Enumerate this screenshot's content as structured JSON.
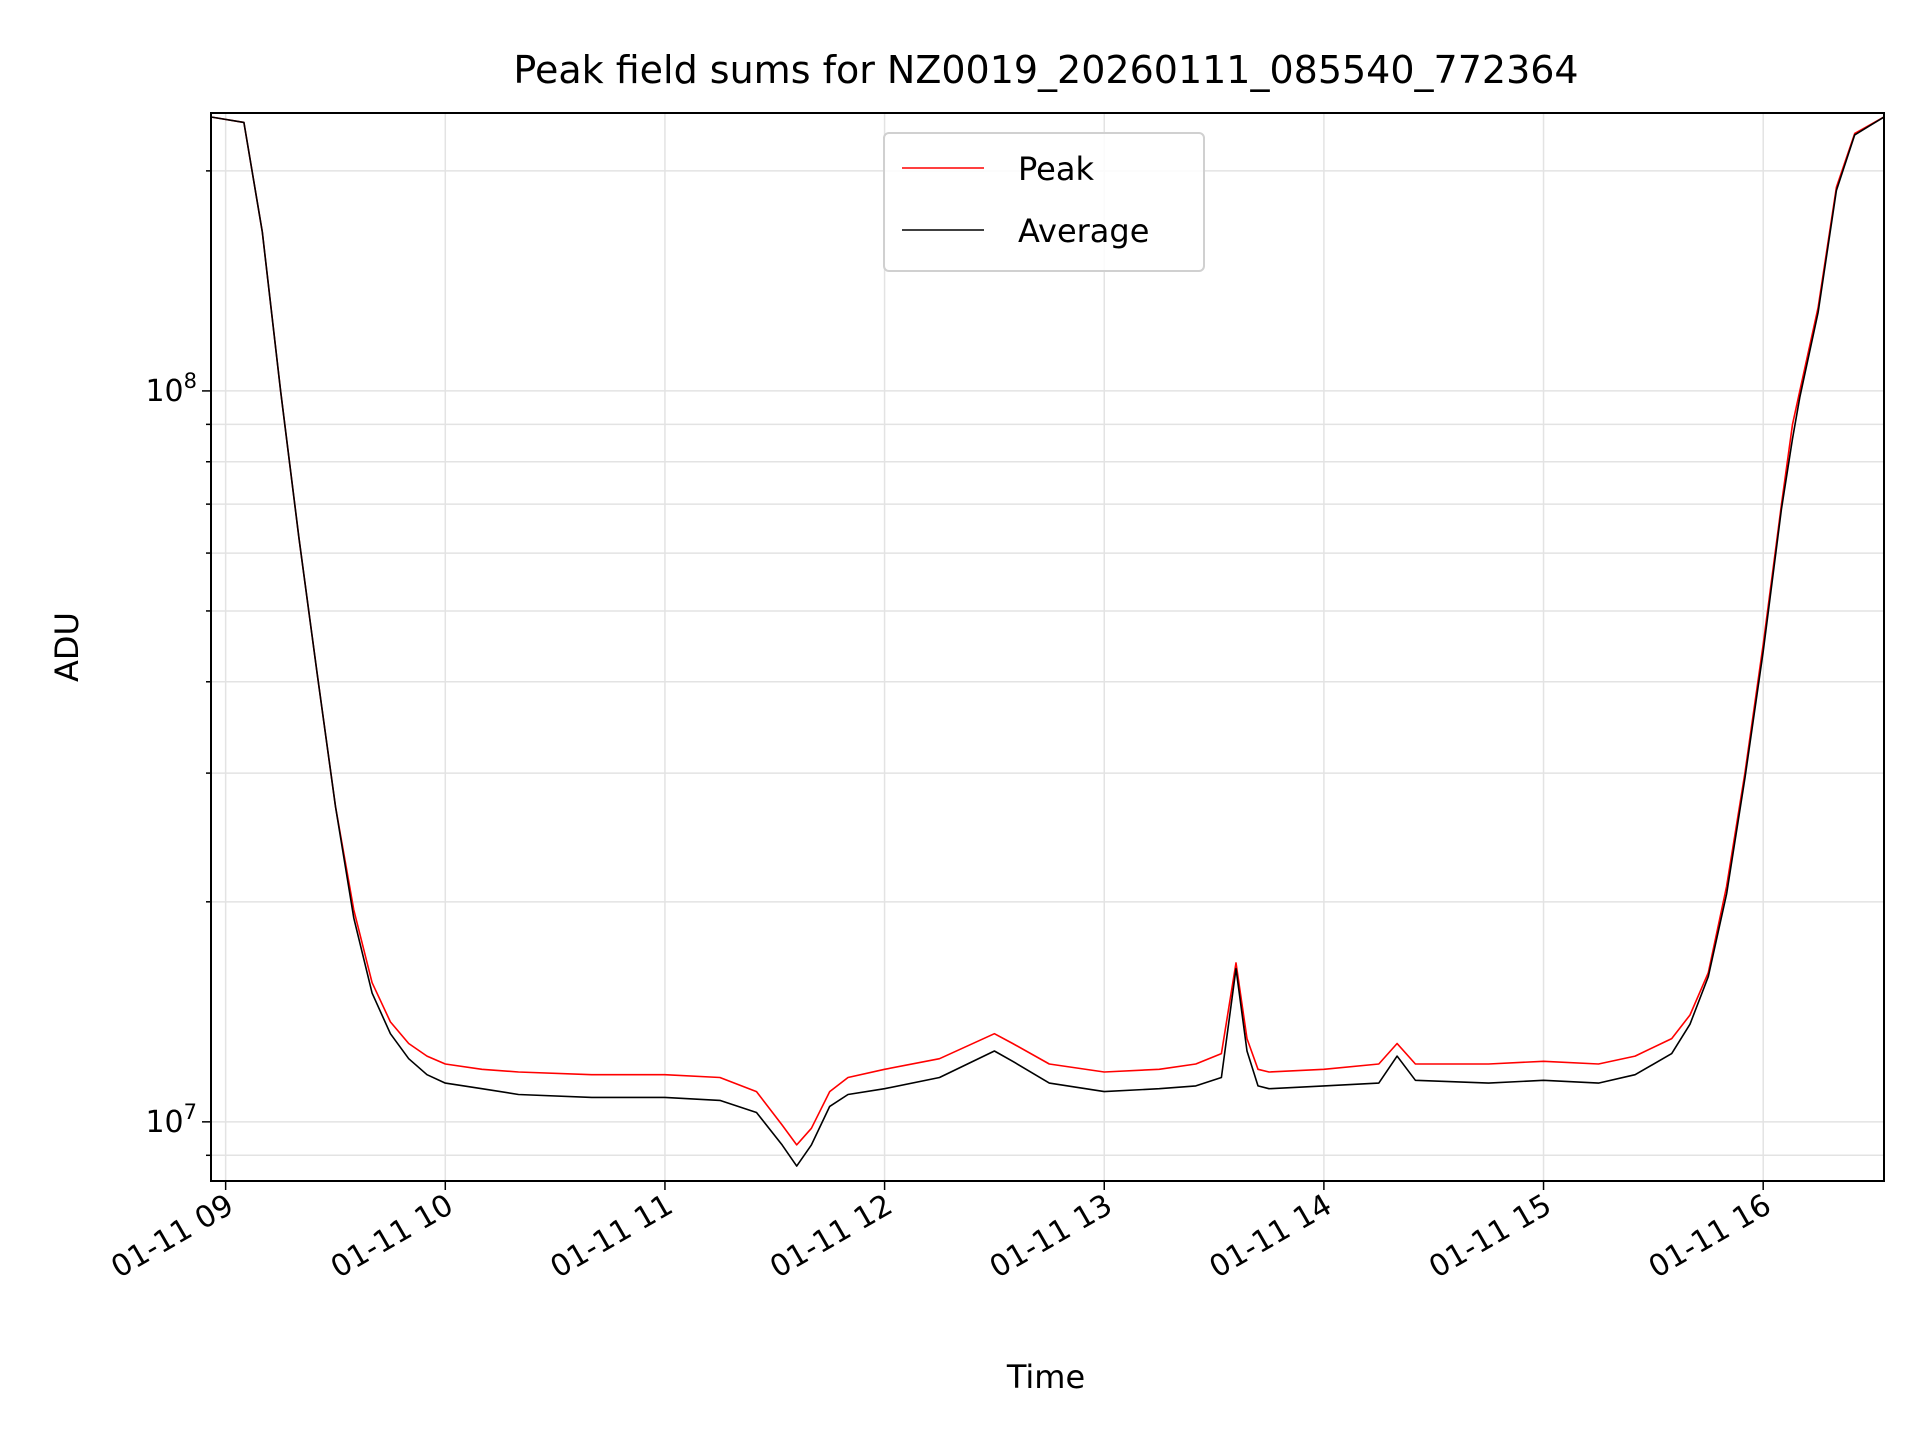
{
  "chart_data": {
    "type": "line",
    "title": "Peak field sums for NZ0019_20260111_085540_772364",
    "xlabel": "Time",
    "ylabel": "ADU",
    "x_scale": "time",
    "y_scale": "log",
    "xlim": [
      "2026-01-11 08:56",
      "2026-01-11 16:33"
    ],
    "ylim": [
      8300000,
      240000000
    ],
    "x_ticks": [
      "2026-01-11 09:00",
      "2026-01-11 10:00",
      "2026-01-11 11:00",
      "2026-01-11 12:00",
      "2026-01-11 13:00",
      "2026-01-11 14:00",
      "2026-01-11 15:00",
      "2026-01-11 16:00"
    ],
    "x_tick_labels": [
      "01-11 09",
      "01-11 10",
      "01-11 11",
      "01-11 12",
      "01-11 13",
      "01-11 14",
      "01-11 15",
      "01-11 16"
    ],
    "y_major_ticks": [
      10000000,
      100000000
    ],
    "y_tick_labels": [
      {
        "base": "10",
        "exp": "7"
      },
      {
        "base": "10",
        "exp": "8"
      }
    ],
    "grid": true,
    "legend_position": "upper center",
    "series": [
      {
        "name": "Peak",
        "color": "#ff0000",
        "x": [
          "2026-01-11 08:56",
          "2026-01-11 09:05",
          "2026-01-11 09:10",
          "2026-01-11 09:15",
          "2026-01-11 09:20",
          "2026-01-11 09:25",
          "2026-01-11 09:30",
          "2026-01-11 09:35",
          "2026-01-11 09:40",
          "2026-01-11 09:45",
          "2026-01-11 09:50",
          "2026-01-11 09:55",
          "2026-01-11 10:00",
          "2026-01-11 10:10",
          "2026-01-11 10:20",
          "2026-01-11 10:40",
          "2026-01-11 11:00",
          "2026-01-11 11:15",
          "2026-01-11 11:25",
          "2026-01-11 11:32",
          "2026-01-11 11:36",
          "2026-01-11 11:40",
          "2026-01-11 11:45",
          "2026-01-11 11:50",
          "2026-01-11 12:00",
          "2026-01-11 12:15",
          "2026-01-11 12:30",
          "2026-01-11 12:35",
          "2026-01-11 12:45",
          "2026-01-11 13:00",
          "2026-01-11 13:15",
          "2026-01-11 13:25",
          "2026-01-11 13:32",
          "2026-01-11 13:36",
          "2026-01-11 13:39",
          "2026-01-11 13:42",
          "2026-01-11 13:45",
          "2026-01-11 14:00",
          "2026-01-11 14:15",
          "2026-01-11 14:20",
          "2026-01-11 14:25",
          "2026-01-11 14:45",
          "2026-01-11 15:00",
          "2026-01-11 15:15",
          "2026-01-11 15:25",
          "2026-01-11 15:35",
          "2026-01-11 15:40",
          "2026-01-11 15:45",
          "2026-01-11 15:50",
          "2026-01-11 15:55",
          "2026-01-11 16:00",
          "2026-01-11 16:05",
          "2026-01-11 16:08",
          "2026-01-11 16:10",
          "2026-01-11 16:15",
          "2026-01-11 16:20",
          "2026-01-11 16:25",
          "2026-01-11 16:33"
        ],
        "values": [
          237000000,
          233000000,
          165000000,
          100000000,
          63000000,
          41000000,
          27000000,
          19500000,
          15500000,
          13700000,
          12800000,
          12300000,
          12000000,
          11800000,
          11700000,
          11600000,
          11600000,
          11500000,
          11000000,
          9900000,
          9300000,
          9800000,
          11000000,
          11500000,
          11800000,
          12200000,
          13200000,
          12800000,
          12000000,
          11700000,
          11800000,
          12000000,
          12400000,
          16500000,
          13000000,
          11800000,
          11700000,
          11800000,
          12000000,
          12800000,
          12000000,
          12000000,
          12100000,
          12000000,
          12300000,
          13000000,
          14000000,
          16000000,
          21000000,
          30000000,
          45000000,
          70000000,
          90000000,
          100000000,
          130000000,
          190000000,
          225000000,
          237000000
        ]
      },
      {
        "name": "Average",
        "color": "#000000",
        "x": [
          "2026-01-11 08:56",
          "2026-01-11 09:05",
          "2026-01-11 09:10",
          "2026-01-11 09:15",
          "2026-01-11 09:20",
          "2026-01-11 09:25",
          "2026-01-11 09:30",
          "2026-01-11 09:35",
          "2026-01-11 09:40",
          "2026-01-11 09:45",
          "2026-01-11 09:50",
          "2026-01-11 09:55",
          "2026-01-11 10:00",
          "2026-01-11 10:10",
          "2026-01-11 10:20",
          "2026-01-11 10:40",
          "2026-01-11 11:00",
          "2026-01-11 11:15",
          "2026-01-11 11:25",
          "2026-01-11 11:32",
          "2026-01-11 11:36",
          "2026-01-11 11:40",
          "2026-01-11 11:45",
          "2026-01-11 11:50",
          "2026-01-11 12:00",
          "2026-01-11 12:15",
          "2026-01-11 12:30",
          "2026-01-11 12:35",
          "2026-01-11 12:45",
          "2026-01-11 13:00",
          "2026-01-11 13:15",
          "2026-01-11 13:25",
          "2026-01-11 13:32",
          "2026-01-11 13:36",
          "2026-01-11 13:39",
          "2026-01-11 13:42",
          "2026-01-11 13:45",
          "2026-01-11 14:00",
          "2026-01-11 14:15",
          "2026-01-11 14:20",
          "2026-01-11 14:25",
          "2026-01-11 14:45",
          "2026-01-11 15:00",
          "2026-01-11 15:15",
          "2026-01-11 15:25",
          "2026-01-11 15:35",
          "2026-01-11 15:40",
          "2026-01-11 15:45",
          "2026-01-11 15:50",
          "2026-01-11 15:55",
          "2026-01-11 16:00",
          "2026-01-11 16:05",
          "2026-01-11 16:08",
          "2026-01-11 16:10",
          "2026-01-11 16:15",
          "2026-01-11 16:20",
          "2026-01-11 16:25",
          "2026-01-11 16:33"
        ],
        "values": [
          237000000,
          233000000,
          165000000,
          100000000,
          63000000,
          41000000,
          27000000,
          19000000,
          15000000,
          13200000,
          12200000,
          11600000,
          11300000,
          11100000,
          10900000,
          10800000,
          10800000,
          10700000,
          10300000,
          9300000,
          8700000,
          9300000,
          10500000,
          10900000,
          11100000,
          11500000,
          12500000,
          12100000,
          11300000,
          11000000,
          11100000,
          11200000,
          11500000,
          16200000,
          12500000,
          11200000,
          11100000,
          11200000,
          11300000,
          12300000,
          11400000,
          11300000,
          11400000,
          11300000,
          11600000,
          12400000,
          13600000,
          15800000,
          20500000,
          29500000,
          44000000,
          69000000,
          86000000,
          98000000,
          128000000,
          188000000,
          224000000,
          237000000
        ]
      }
    ]
  }
}
